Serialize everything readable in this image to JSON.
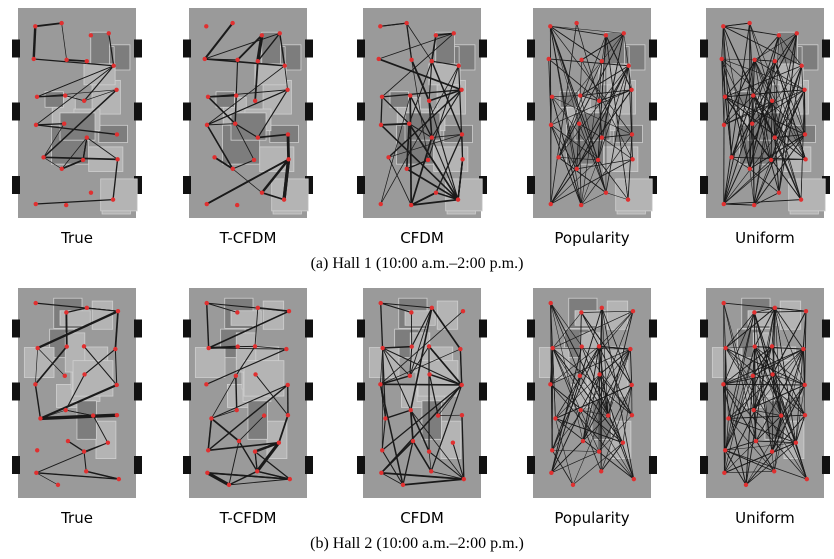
{
  "rows": [
    {
      "panels": [
        "True",
        "T-CFDM",
        "CFDM",
        "Popularity",
        "Uniform"
      ],
      "caption": "(a)  Hall 1 (10:00 a.m.–2:00 p.m.)"
    },
    {
      "panels": [
        "True",
        "T-CFDM",
        "CFDM",
        "Popularity",
        "Uniform"
      ],
      "caption": "(b)  Hall 2 (10:00 a.m.–2:00 p.m.)"
    }
  ]
}
